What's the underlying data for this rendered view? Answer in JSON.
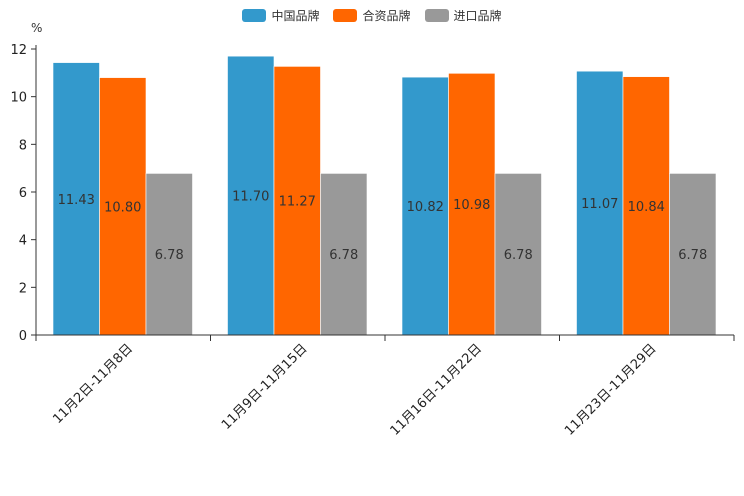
{
  "chart_data": {
    "type": "bar",
    "unit": "%",
    "categories": [
      "11月2日-11月8日",
      "11月9日-11月15日",
      "11月16日-11月22日",
      "11月23日-11月29日"
    ],
    "series": [
      {
        "name": "中国品牌",
        "color": "#3399CC",
        "values": [
          11.43,
          11.7,
          10.82,
          11.07
        ],
        "labels": [
          "11.43",
          "11.70",
          "10.82",
          "11.07"
        ]
      },
      {
        "name": "合资品牌",
        "color": "#FF6600",
        "values": [
          10.8,
          11.27,
          10.98,
          10.84
        ],
        "labels": [
          "10.80",
          "11.27",
          "10.98",
          "10.84"
        ]
      },
      {
        "name": "进口品牌",
        "color": "#999999",
        "values": [
          6.78,
          6.78,
          6.78,
          6.78
        ],
        "labels": [
          "6.78",
          "6.78",
          "6.78",
          "6.78"
        ]
      }
    ],
    "yticks": [
      "0",
      "2",
      "4",
      "6",
      "8",
      "10",
      "12"
    ],
    "ylim": [
      0,
      12
    ],
    "legend_position": "top-center",
    "grid": false
  }
}
